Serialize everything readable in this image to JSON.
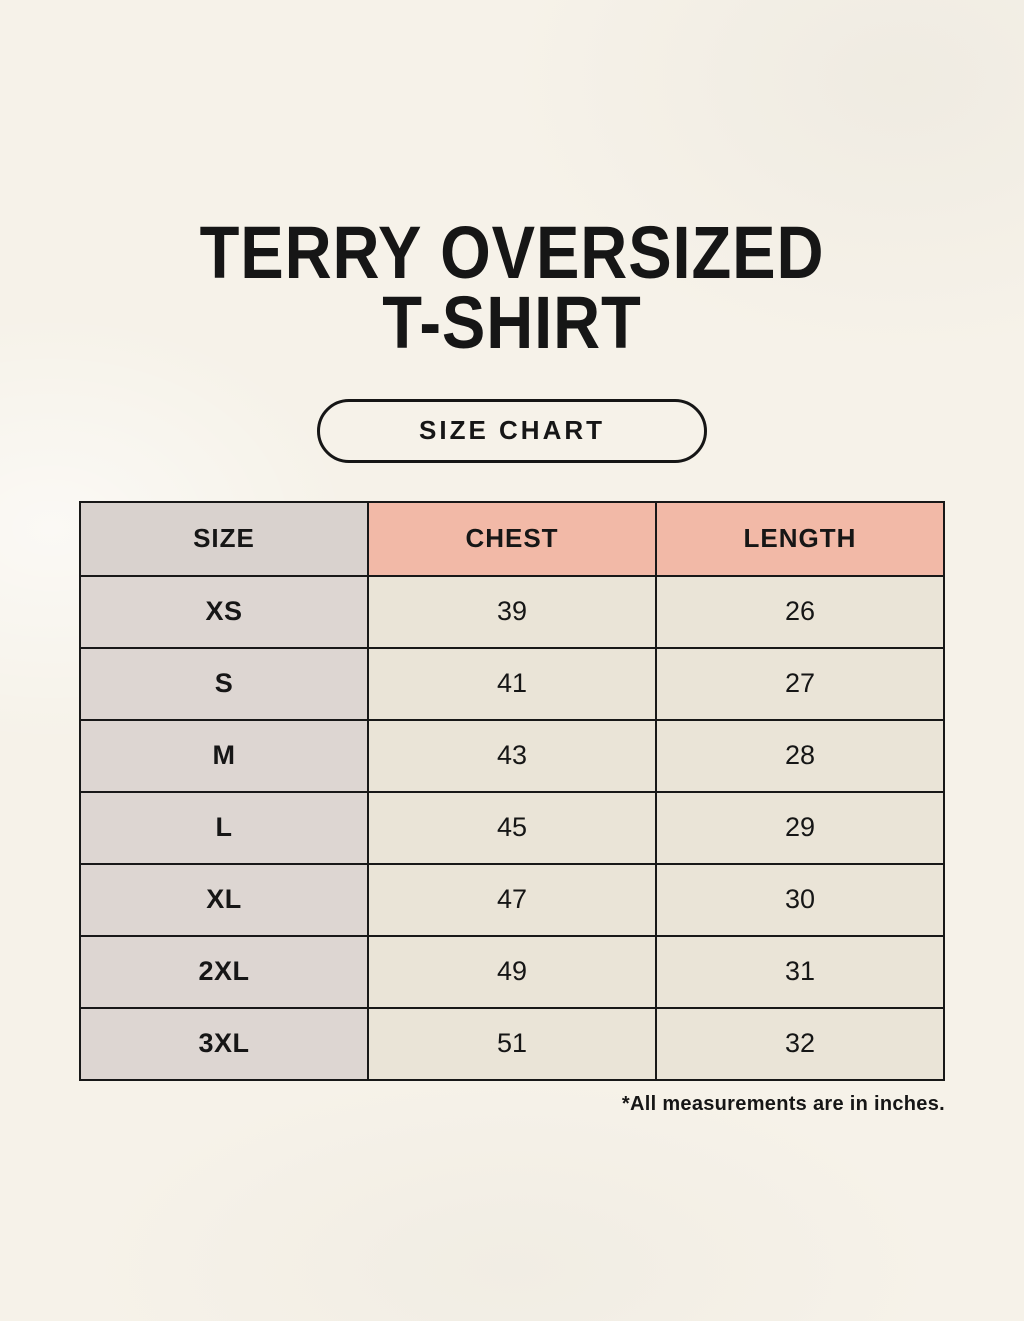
{
  "page": {
    "title_line1": "TERRY OVERSIZED",
    "title_line2": "T-SHIRT",
    "badge_label": "SIZE CHART",
    "footnote": "*All measurements are in inches."
  },
  "colors": {
    "background": "#f6f2e9",
    "size_header_bg": "#d9d2ce",
    "measure_header_bg": "#f2b9a7",
    "size_column_bg": "#ddd6d2",
    "value_cell_bg": "#eae4d7",
    "border": "#181818",
    "text": "#161616"
  },
  "chart_data": {
    "type": "table",
    "title": "TERRY OVERSIZED T-SHIRT",
    "columns": [
      "SIZE",
      "CHEST",
      "LENGTH"
    ],
    "rows": [
      {
        "size": "XS",
        "chest": "39",
        "length": "26"
      },
      {
        "size": "S",
        "chest": "41",
        "length": "27"
      },
      {
        "size": "M",
        "chest": "43",
        "length": "28"
      },
      {
        "size": "L",
        "chest": "45",
        "length": "29"
      },
      {
        "size": "XL",
        "chest": "47",
        "length": "30"
      },
      {
        "size": "2XL",
        "chest": "49",
        "length": "31"
      },
      {
        "size": "3XL",
        "chest": "51",
        "length": "32"
      }
    ],
    "note": "*All measurements are in inches."
  }
}
